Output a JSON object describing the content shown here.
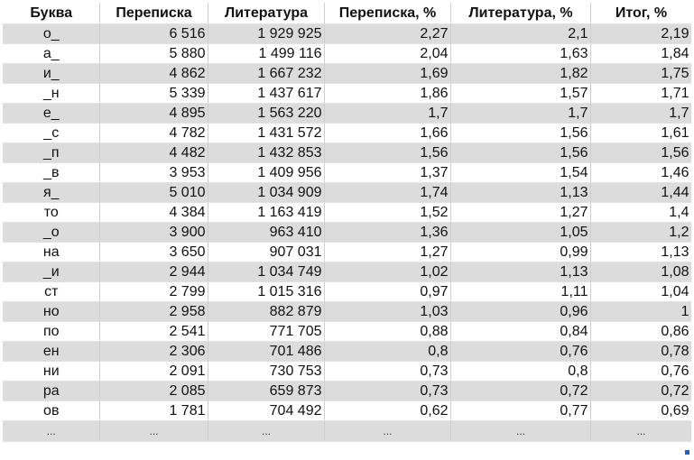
{
  "columns": [
    "Буква",
    "Переписка",
    "Литература",
    "Переписка, %",
    "Литература, %",
    "Итог, %"
  ],
  "rows": [
    [
      "о_",
      "6 516",
      "1 929 925",
      "2,27",
      "2,1",
      "2,19"
    ],
    [
      "а_",
      "5 880",
      "1 499 116",
      "2,04",
      "1,63",
      "1,84"
    ],
    [
      "и_",
      "4 862",
      "1 667 232",
      "1,69",
      "1,82",
      "1,75"
    ],
    [
      "_н",
      "5 339",
      "1 437 617",
      "1,86",
      "1,57",
      "1,71"
    ],
    [
      "е_",
      "4 895",
      "1 563 220",
      "1,7",
      "1,7",
      "1,7"
    ],
    [
      "_с",
      "4 782",
      "1 431 572",
      "1,66",
      "1,56",
      "1,61"
    ],
    [
      "_п",
      "4 482",
      "1 432 853",
      "1,56",
      "1,56",
      "1,56"
    ],
    [
      "_в",
      "3 953",
      "1 409 956",
      "1,37",
      "1,54",
      "1,46"
    ],
    [
      "я_",
      "5 010",
      "1 034 909",
      "1,74",
      "1,13",
      "1,44"
    ],
    [
      "то",
      "4 384",
      "1 163 419",
      "1,52",
      "1,27",
      "1,4"
    ],
    [
      "_о",
      "3 900",
      "963 410",
      "1,36",
      "1,05",
      "1,2"
    ],
    [
      "на",
      "3 650",
      "907 031",
      "1,27",
      "0,99",
      "1,13"
    ],
    [
      "_и",
      "2 944",
      "1 034 749",
      "1,02",
      "1,13",
      "1,08"
    ],
    [
      "ст",
      "2 799",
      "1 015 316",
      "0,97",
      "1,11",
      "1,04"
    ],
    [
      "но",
      "2 958",
      "882 879",
      "1,03",
      "0,96",
      "1"
    ],
    [
      "по",
      "2 541",
      "771 705",
      "0,88",
      "0,84",
      "0,86"
    ],
    [
      "ен",
      "2 306",
      "701 486",
      "0,8",
      "0,76",
      "0,78"
    ],
    [
      "ни",
      "2 091",
      "730 753",
      "0,73",
      "0,8",
      "0,76"
    ],
    [
      "ра",
      "2 085",
      "659 873",
      "0,73",
      "0,72",
      "0,72"
    ],
    [
      "ов",
      "1 781",
      "704 492",
      "0,62",
      "0,77",
      "0,69"
    ]
  ],
  "ellipsis_row": [
    "...",
    "...",
    "...",
    "...",
    "...",
    "..."
  ]
}
